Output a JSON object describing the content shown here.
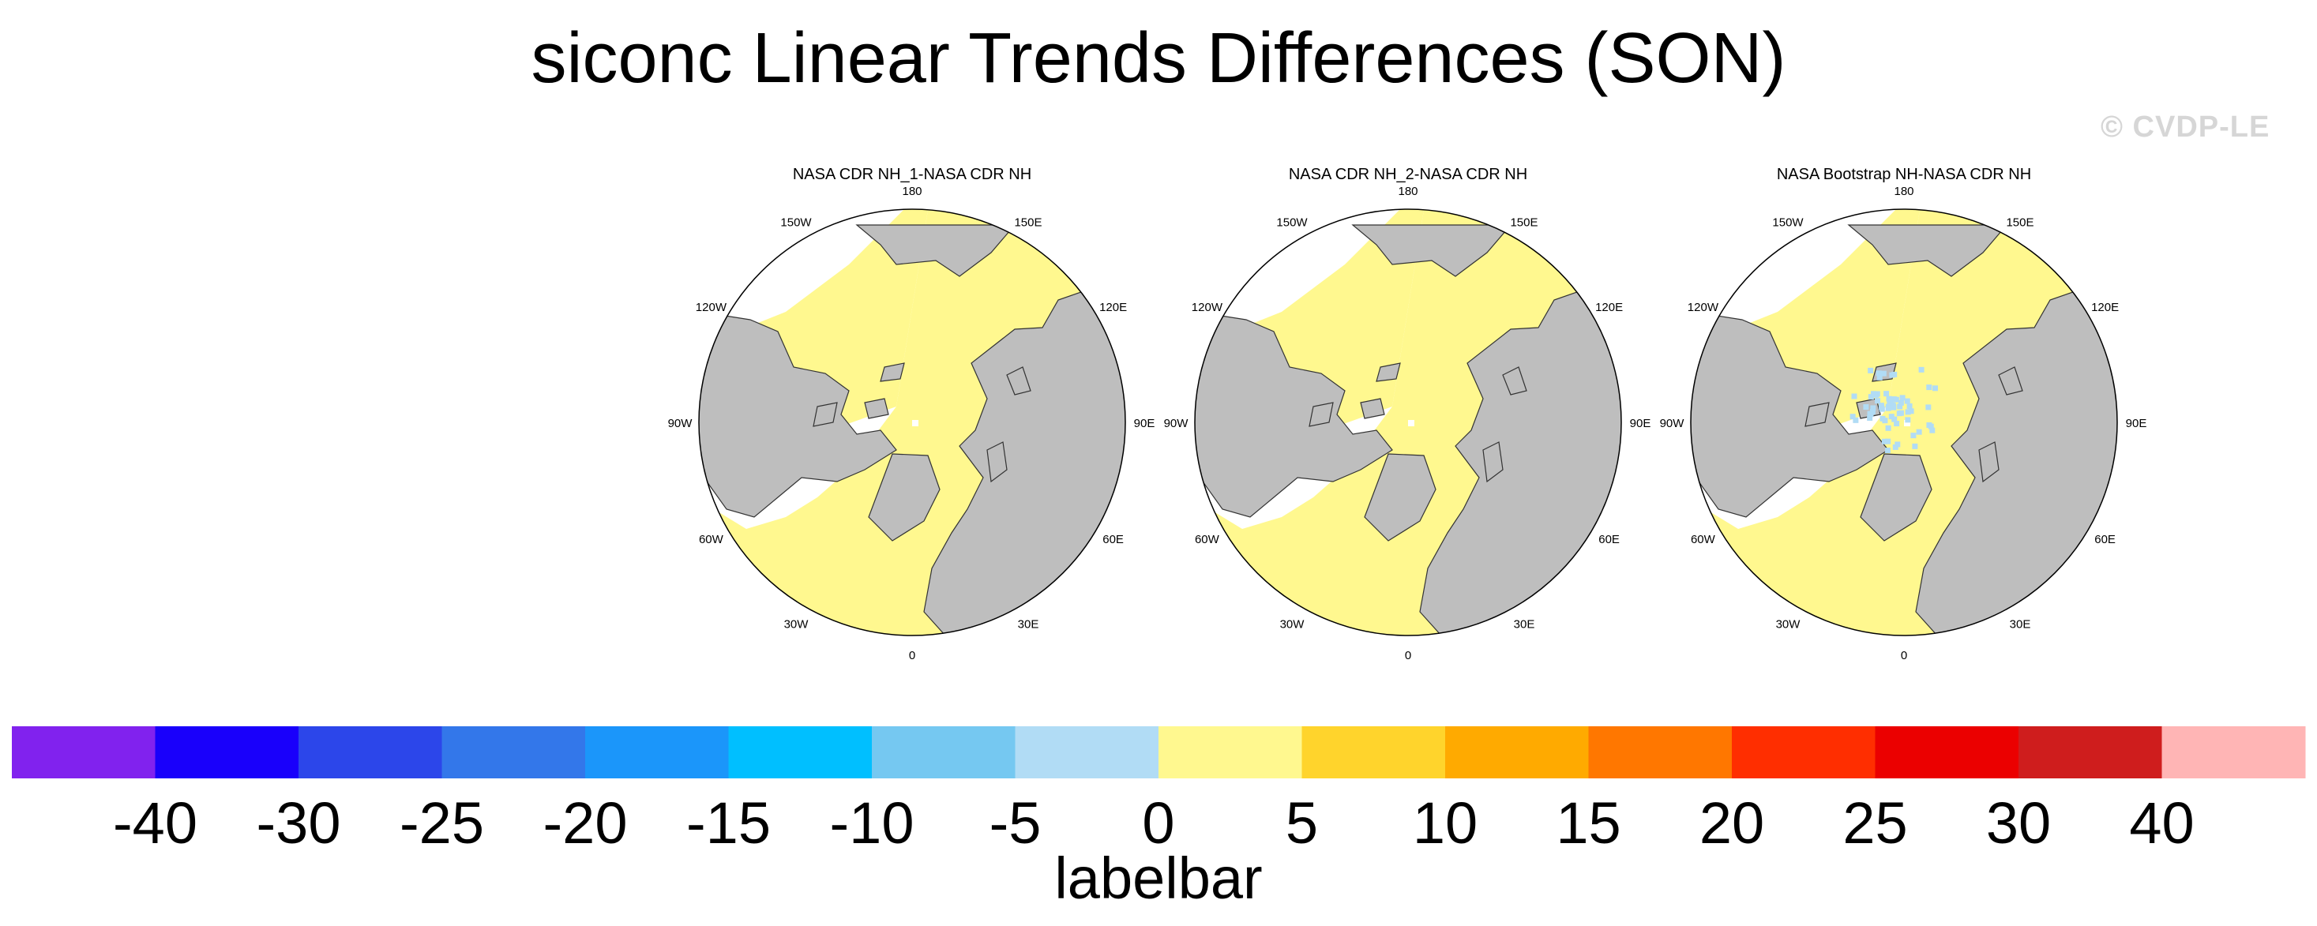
{
  "title": "siconc Linear Trends Differences (SON)",
  "watermark": "© CVDP-LE",
  "maps": [
    {
      "title": "NASA CDR NH_1-NASA CDR NH",
      "pole_anomaly": "none"
    },
    {
      "title": "NASA CDR NH_2-NASA CDR NH",
      "pole_anomaly": "none"
    },
    {
      "title": "NASA Bootstrap NH-NASA CDR NH",
      "pole_anomaly": "negative-speckle"
    }
  ],
  "longitude_labels": [
    "180",
    "150E",
    "120E",
    "90E",
    "60E",
    "30E",
    "0",
    "30W",
    "60W",
    "90W",
    "120W",
    "150W"
  ],
  "colorbar": {
    "label": "labelbar",
    "ticks": [
      "-40",
      "-30",
      "-25",
      "-20",
      "-15",
      "-10",
      "-5",
      "0",
      "5",
      "10",
      "15",
      "20",
      "25",
      "30",
      "40"
    ],
    "colors": [
      "#8122ee",
      "#1900fb",
      "#2c46ea",
      "#3377ea",
      "#1b96fa",
      "#00bfff",
      "#75c8f1",
      "#b1dcf5",
      "#fff88f",
      "#ffd42c",
      "#ffaa00",
      "#ff7700",
      "#ff2e00",
      "#eb0000",
      "#cf1d1d",
      "#ffb5b5"
    ]
  },
  "colors": {
    "land": "#bebebe",
    "ocean_zero_band": "#fff88f",
    "no_data": "#ffffff",
    "negative_small": "#b1dcf5"
  }
}
